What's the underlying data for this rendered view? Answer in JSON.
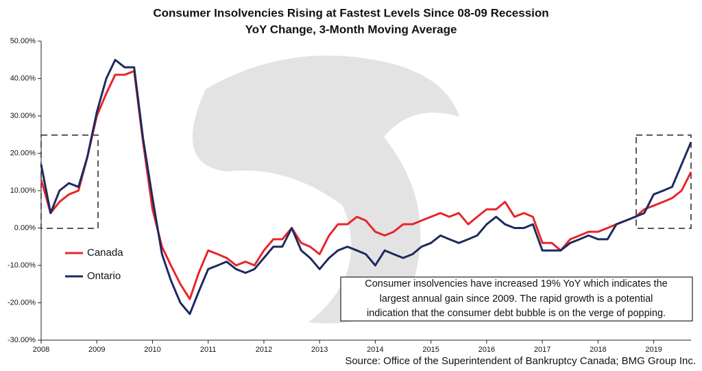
{
  "chart_data": {
    "type": "line",
    "title": "Consumer Insolvencies Rising at Fastest Levels Since 08-09 Recession",
    "subtitle": "YoY Change, 3-Month Moving Average",
    "x": [
      2008,
      2008.17,
      2008.33,
      2008.5,
      2008.67,
      2008.83,
      2009,
      2009.17,
      2009.33,
      2009.5,
      2009.67,
      2009.83,
      2010,
      2010.17,
      2010.33,
      2010.5,
      2010.67,
      2010.83,
      2011,
      2011.17,
      2011.33,
      2011.5,
      2011.67,
      2011.83,
      2012,
      2012.17,
      2012.33,
      2012.5,
      2012.67,
      2012.83,
      2013,
      2013.17,
      2013.33,
      2013.5,
      2013.67,
      2013.83,
      2014,
      2014.17,
      2014.33,
      2014.5,
      2014.67,
      2014.83,
      2015,
      2015.17,
      2015.33,
      2015.5,
      2015.67,
      2015.83,
      2016,
      2016.17,
      2016.33,
      2016.5,
      2016.67,
      2016.83,
      2017,
      2017.17,
      2017.33,
      2017.5,
      2017.67,
      2017.83,
      2018,
      2018.17,
      2018.33,
      2018.5,
      2018.67,
      2018.83,
      2019,
      2019.17,
      2019.33,
      2019.5,
      2019.67
    ],
    "series": [
      {
        "name": "Canada",
        "color": "#e8242a",
        "values": [
          13,
          4,
          7,
          9,
          10,
          19,
          30,
          36,
          41,
          41,
          42,
          23,
          5,
          -5,
          -10,
          -15,
          -19,
          -12,
          -6,
          -7,
          -8,
          -10,
          -9,
          -10,
          -6,
          -3,
          -3,
          0,
          -4,
          -5,
          -7,
          -2,
          1,
          1,
          3,
          2,
          -1,
          -2,
          -1,
          1,
          1,
          2,
          3,
          4,
          3,
          4,
          1,
          3,
          5,
          5,
          7,
          3,
          4,
          3,
          -4,
          -4,
          -6,
          -3,
          -2,
          -1,
          -1,
          0,
          1,
          2,
          3,
          5,
          6,
          7,
          8,
          10,
          15
        ]
      },
      {
        "name": "Ontario",
        "color": "#1c2a5e",
        "values": [
          17,
          4,
          10,
          12,
          11,
          19,
          31,
          40,
          45,
          43,
          43,
          24,
          8,
          -7,
          -14,
          -20,
          -23,
          -17,
          -11,
          -10,
          -9,
          -11,
          -12,
          -11,
          -8,
          -5,
          -5,
          0,
          -6,
          -8,
          -11,
          -8,
          -6,
          -5,
          -6,
          -7,
          -10,
          -6,
          -7,
          -8,
          -7,
          -5,
          -4,
          -2,
          -3,
          -4,
          -3,
          -2,
          1,
          3,
          1,
          0,
          0,
          1,
          -6,
          -6,
          -6,
          -4,
          -3,
          -2,
          -3,
          -3,
          1,
          2,
          3,
          4,
          9,
          10,
          11,
          17,
          23
        ]
      }
    ],
    "xlim": [
      2008,
      2019.67
    ],
    "xticks": [
      2008,
      2009,
      2010,
      2011,
      2012,
      2013,
      2014,
      2015,
      2016,
      2017,
      2018,
      2019
    ],
    "ylim": [
      -30,
      50
    ],
    "yticks": [
      {
        "value": -30,
        "label": "-30.00%"
      },
      {
        "value": -20,
        "label": "-20.00%"
      },
      {
        "value": -10,
        "label": "-10.00%"
      },
      {
        "value": 0,
        "label": "0.00%"
      },
      {
        "value": 10,
        "label": "10.00%"
      },
      {
        "value": 20,
        "label": "20.00%"
      },
      {
        "value": 30,
        "label": "30.00%"
      },
      {
        "value": 40,
        "label": "40.00%"
      },
      {
        "value": 50,
        "label": "50.00%"
      }
    ],
    "grid": false,
    "legend": "lower left",
    "annotation": [
      "Consumer insolvencies have increased 19% YoY which indicates the",
      "largest annual gain since 2009. The rapid growth is a potential",
      "indication that the consumer debt bubble is on the verge of popping."
    ],
    "source": "Source: Office of the Superintendent of Bankruptcy Canada; BMG Group Inc."
  }
}
